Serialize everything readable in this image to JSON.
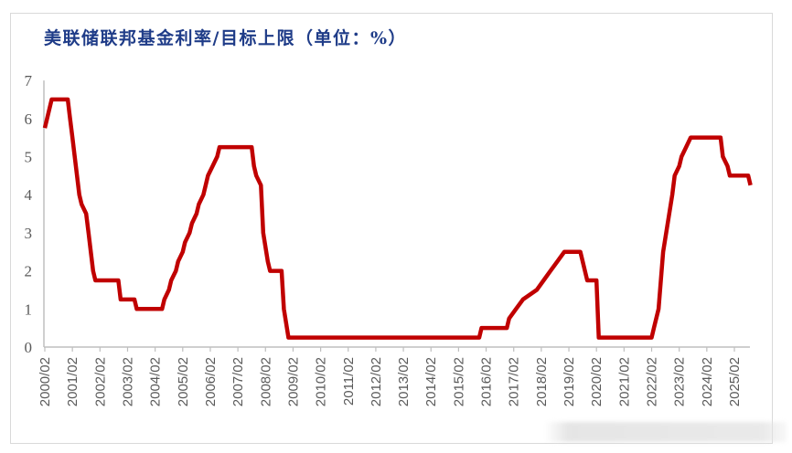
{
  "title": "美联储联邦基金利率/目标上限（单位：%）",
  "colors": {
    "line": "#c00000",
    "title": "#1f3c88",
    "axis": "#bfbfbf",
    "tick_text": "#595959",
    "frame": "#d9d9d9"
  },
  "chart_data": {
    "type": "line",
    "title": "美联储联邦基金利率/目标上限（单位：%）",
    "xlabel": "",
    "ylabel": "",
    "ylim": [
      0,
      7
    ],
    "yticks": [
      0,
      1,
      2,
      3,
      4,
      5,
      6,
      7
    ],
    "xticks": [
      "2000/02",
      "2001/02",
      "2002/02",
      "2003/02",
      "2004/02",
      "2005/02",
      "2006/02",
      "2007/02",
      "2008/02",
      "2009/02",
      "2010/02",
      "2011/02",
      "2012/02",
      "2013/02",
      "2014/02",
      "2015/02",
      "2016/02",
      "2017/02",
      "2018/02",
      "2019/02",
      "2020/02",
      "2021/02",
      "2022/02",
      "2023/02",
      "2024/02",
      "2025/02"
    ],
    "grid": false,
    "legend": null,
    "series": [
      {
        "name": "联邦基金利率目标上限",
        "color": "#c00000",
        "points": [
          [
            "2000/02",
            5.75
          ],
          [
            "2000/03",
            6.0
          ],
          [
            "2000/05",
            6.5
          ],
          [
            "2000/12",
            6.5
          ],
          [
            "2001/01",
            6.0
          ],
          [
            "2001/02",
            5.5
          ],
          [
            "2001/03",
            5.0
          ],
          [
            "2001/04",
            4.5
          ],
          [
            "2001/05",
            4.0
          ],
          [
            "2001/06",
            3.75
          ],
          [
            "2001/08",
            3.5
          ],
          [
            "2001/09",
            3.0
          ],
          [
            "2001/10",
            2.5
          ],
          [
            "2001/11",
            2.0
          ],
          [
            "2001/12",
            1.75
          ],
          [
            "2002/10",
            1.75
          ],
          [
            "2002/11",
            1.25
          ],
          [
            "2003/05",
            1.25
          ],
          [
            "2003/06",
            1.0
          ],
          [
            "2004/05",
            1.0
          ],
          [
            "2004/06",
            1.25
          ],
          [
            "2004/08",
            1.5
          ],
          [
            "2004/09",
            1.75
          ],
          [
            "2004/11",
            2.0
          ],
          [
            "2004/12",
            2.25
          ],
          [
            "2005/02",
            2.5
          ],
          [
            "2005/03",
            2.75
          ],
          [
            "2005/05",
            3.0
          ],
          [
            "2005/06",
            3.25
          ],
          [
            "2005/08",
            3.5
          ],
          [
            "2005/09",
            3.75
          ],
          [
            "2005/11",
            4.0
          ],
          [
            "2005/12",
            4.25
          ],
          [
            "2006/01",
            4.5
          ],
          [
            "2006/03",
            4.75
          ],
          [
            "2006/05",
            5.0
          ],
          [
            "2006/06",
            5.25
          ],
          [
            "2007/08",
            5.25
          ],
          [
            "2007/09",
            4.75
          ],
          [
            "2007/10",
            4.5
          ],
          [
            "2007/12",
            4.25
          ],
          [
            "2008/01",
            3.0
          ],
          [
            "2008/03",
            2.25
          ],
          [
            "2008/04",
            2.0
          ],
          [
            "2008/09",
            2.0
          ],
          [
            "2008/10",
            1.0
          ],
          [
            "2008/12",
            0.25
          ],
          [
            "2015/11",
            0.25
          ],
          [
            "2015/12",
            0.5
          ],
          [
            "2016/11",
            0.5
          ],
          [
            "2016/12",
            0.75
          ],
          [
            "2017/03",
            1.0
          ],
          [
            "2017/06",
            1.25
          ],
          [
            "2017/12",
            1.5
          ],
          [
            "2018/03",
            1.75
          ],
          [
            "2018/06",
            2.0
          ],
          [
            "2018/09",
            2.25
          ],
          [
            "2018/12",
            2.5
          ],
          [
            "2019/07",
            2.5
          ],
          [
            "2019/08",
            2.25
          ],
          [
            "2019/09",
            2.0
          ],
          [
            "2019/10",
            1.75
          ],
          [
            "2020/02",
            1.75
          ],
          [
            "2020/03",
            0.25
          ],
          [
            "2022/02",
            0.25
          ],
          [
            "2022/03",
            0.5
          ],
          [
            "2022/05",
            1.0
          ],
          [
            "2022/06",
            1.75
          ],
          [
            "2022/07",
            2.5
          ],
          [
            "2022/09",
            3.25
          ],
          [
            "2022/11",
            4.0
          ],
          [
            "2022/12",
            4.5
          ],
          [
            "2023/02",
            4.75
          ],
          [
            "2023/03",
            5.0
          ],
          [
            "2023/05",
            5.25
          ],
          [
            "2023/07",
            5.5
          ],
          [
            "2024/08",
            5.5
          ],
          [
            "2024/09",
            5.0
          ],
          [
            "2024/11",
            4.75
          ],
          [
            "2024/12",
            4.5
          ],
          [
            "2025/08",
            4.5
          ],
          [
            "2025/09",
            4.25
          ]
        ]
      }
    ]
  }
}
